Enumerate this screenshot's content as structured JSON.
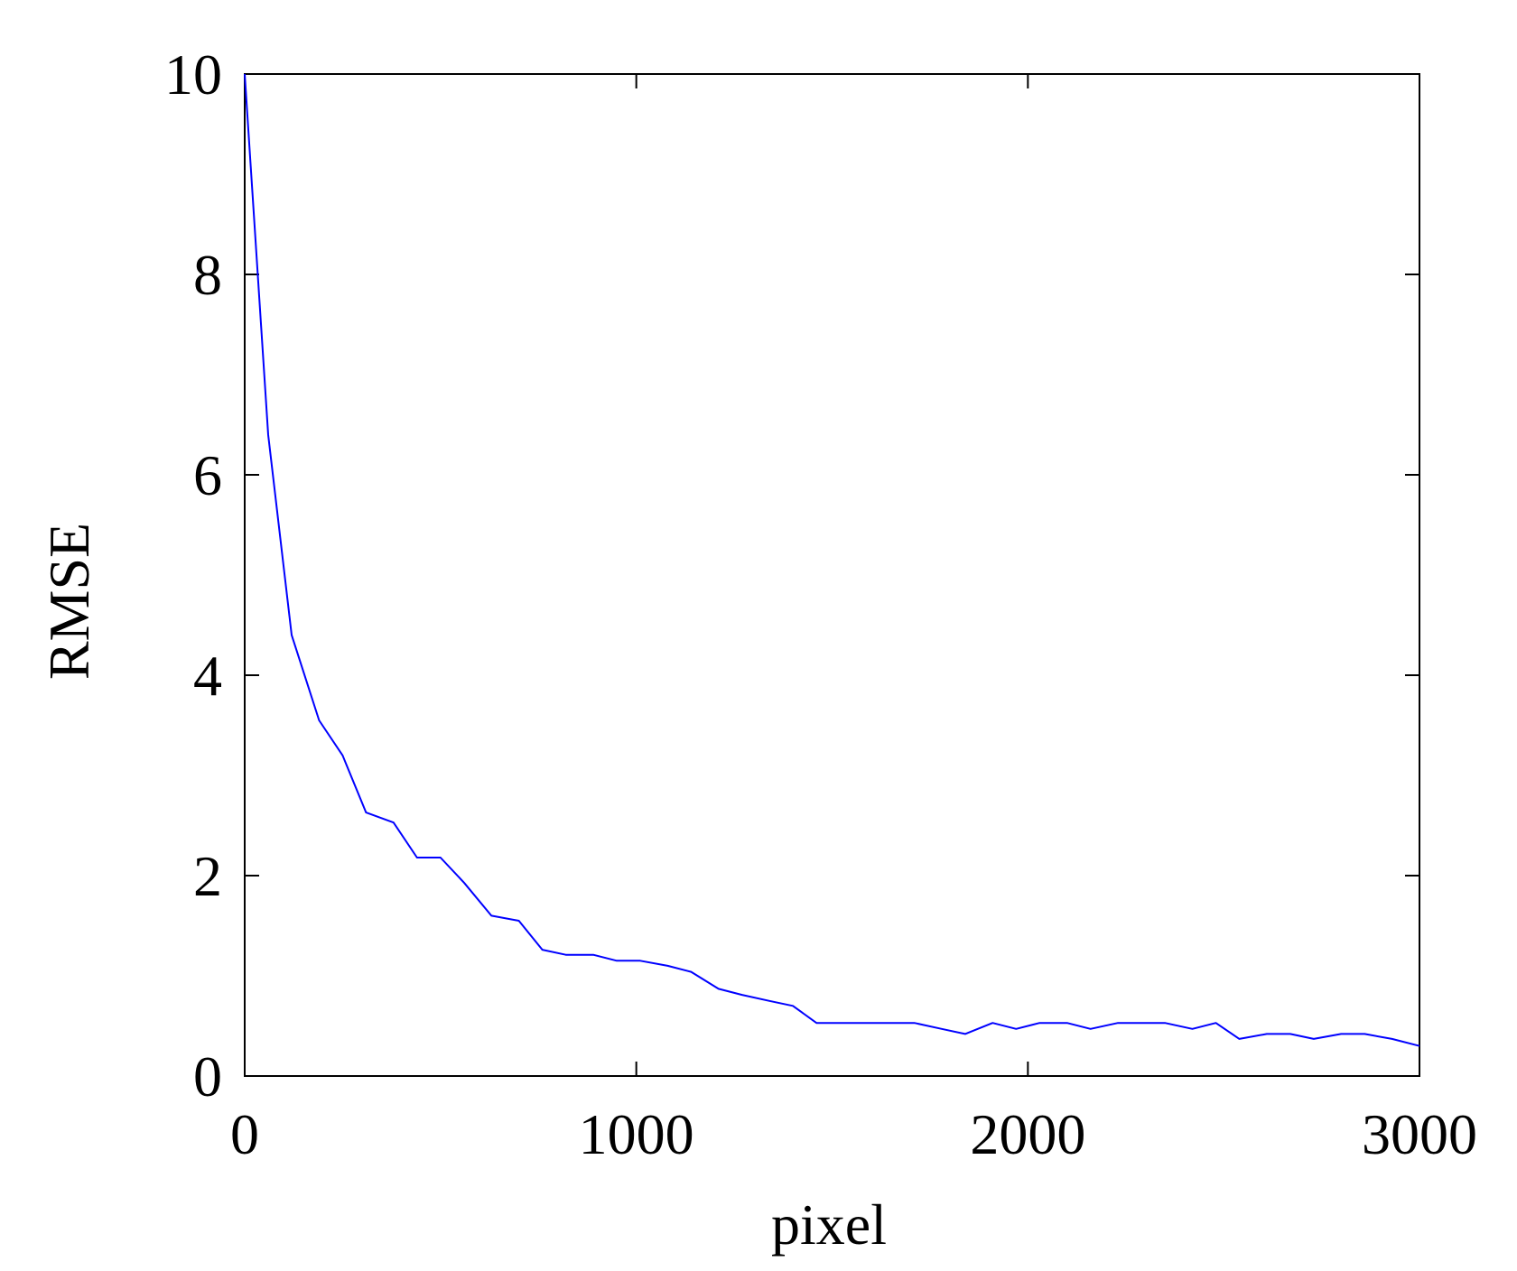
{
  "chart_data": {
    "type": "line",
    "title": "",
    "xlabel": "pixel",
    "ylabel": "RMSE",
    "xlim": [
      0,
      3000
    ],
    "ylim": [
      0,
      10
    ],
    "x_ticks": [
      0,
      1000,
      2000,
      3000
    ],
    "y_ticks": [
      0,
      2,
      4,
      6,
      8,
      10
    ],
    "x_tick_labels": [
      "0",
      "1000",
      "2000",
      "3000"
    ],
    "y_tick_labels": [
      "0",
      "2",
      "4",
      "6",
      "8",
      "10"
    ],
    "grid": false,
    "series": [
      {
        "color": "#0000ff",
        "x": [
          0,
          60,
          120,
          190,
          250,
          310,
          380,
          440,
          500,
          560,
          630,
          700,
          760,
          820,
          890,
          950,
          1010,
          1080,
          1140,
          1210,
          1270,
          1340,
          1400,
          1460,
          1520,
          1590,
          1650,
          1710,
          1780,
          1840,
          1910,
          1970,
          2030,
          2100,
          2160,
          2230,
          2290,
          2350,
          2420,
          2480,
          2540,
          2610,
          2670,
          2730,
          2800,
          2860,
          2930,
          3000
        ],
        "y": [
          10.0,
          6.4,
          4.4,
          3.55,
          3.2,
          2.63,
          2.53,
          2.18,
          2.18,
          1.93,
          1.6,
          1.55,
          1.26,
          1.21,
          1.21,
          1.15,
          1.15,
          1.1,
          1.04,
          0.87,
          0.81,
          0.75,
          0.7,
          0.53,
          0.53,
          0.53,
          0.53,
          0.53,
          0.47,
          0.42,
          0.53,
          0.47,
          0.53,
          0.53,
          0.47,
          0.53,
          0.53,
          0.53,
          0.47,
          0.53,
          0.37,
          0.42,
          0.42,
          0.37,
          0.42,
          0.42,
          0.37,
          0.3
        ]
      }
    ]
  }
}
